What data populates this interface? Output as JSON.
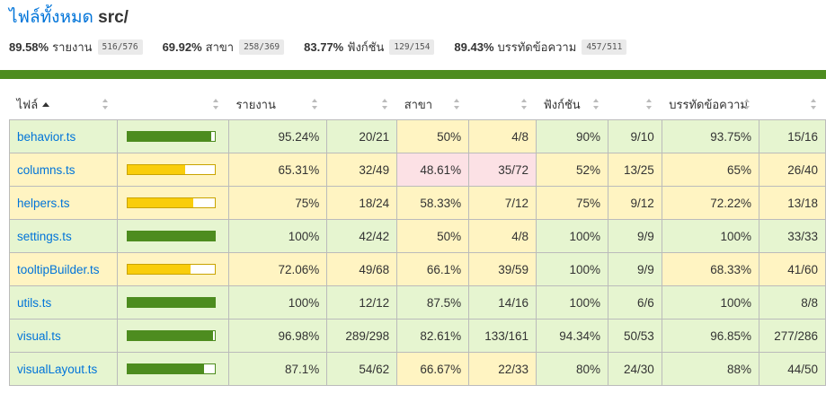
{
  "header": {
    "title_all_files": "ไฟล์ทั้งหมด",
    "title_dir": "src/"
  },
  "summary": [
    {
      "pct": "89.58%",
      "label": "รายงาน",
      "frac": "516/576"
    },
    {
      "pct": "69.92%",
      "label": "สาขา",
      "frac": "258/369"
    },
    {
      "pct": "83.77%",
      "label": "ฟังก์ชัน",
      "frac": "129/154"
    },
    {
      "pct": "89.43%",
      "label": "บรรทัดข้อความ",
      "frac": "457/511"
    }
  ],
  "columns": {
    "file": "ไฟล์",
    "statements": "รายงาน",
    "branches": "สาขา",
    "functions": "ฟังก์ชัน",
    "lines": "บรรทัดข้อความ"
  },
  "colors": {
    "high": "#e6f5d0",
    "medium": "#fff4c2",
    "low": "#fce1e5",
    "bar_high": "#4d8c1f",
    "bar_medium": "#f9cd0b",
    "link": "#0074d9"
  },
  "rows": [
    {
      "file": "behavior.ts",
      "coverage": 0.9524,
      "bar_level": "high",
      "statements": {
        "pct": "95.24%",
        "frac": "20/21",
        "level": "high"
      },
      "branches": {
        "pct": "50%",
        "frac": "4/8",
        "level": "medium"
      },
      "functions": {
        "pct": "90%",
        "frac": "9/10",
        "level": "high"
      },
      "lines": {
        "pct": "93.75%",
        "frac": "15/16",
        "level": "high"
      }
    },
    {
      "file": "columns.ts",
      "coverage": 0.6531,
      "bar_level": "medium",
      "statements": {
        "pct": "65.31%",
        "frac": "32/49",
        "level": "medium"
      },
      "branches": {
        "pct": "48.61%",
        "frac": "35/72",
        "level": "low"
      },
      "functions": {
        "pct": "52%",
        "frac": "13/25",
        "level": "medium"
      },
      "lines": {
        "pct": "65%",
        "frac": "26/40",
        "level": "medium"
      }
    },
    {
      "file": "helpers.ts",
      "coverage": 0.75,
      "bar_level": "medium",
      "statements": {
        "pct": "75%",
        "frac": "18/24",
        "level": "medium"
      },
      "branches": {
        "pct": "58.33%",
        "frac": "7/12",
        "level": "medium"
      },
      "functions": {
        "pct": "75%",
        "frac": "9/12",
        "level": "medium"
      },
      "lines": {
        "pct": "72.22%",
        "frac": "13/18",
        "level": "medium"
      }
    },
    {
      "file": "settings.ts",
      "coverage": 1.0,
      "bar_level": "high",
      "statements": {
        "pct": "100%",
        "frac": "42/42",
        "level": "high"
      },
      "branches": {
        "pct": "50%",
        "frac": "4/8",
        "level": "medium"
      },
      "functions": {
        "pct": "100%",
        "frac": "9/9",
        "level": "high"
      },
      "lines": {
        "pct": "100%",
        "frac": "33/33",
        "level": "high"
      }
    },
    {
      "file": "tooltipBuilder.ts",
      "coverage": 0.7206,
      "bar_level": "medium",
      "statements": {
        "pct": "72.06%",
        "frac": "49/68",
        "level": "medium"
      },
      "branches": {
        "pct": "66.1%",
        "frac": "39/59",
        "level": "medium"
      },
      "functions": {
        "pct": "100%",
        "frac": "9/9",
        "level": "high"
      },
      "lines": {
        "pct": "68.33%",
        "frac": "41/60",
        "level": "medium"
      }
    },
    {
      "file": "utils.ts",
      "coverage": 1.0,
      "bar_level": "high",
      "statements": {
        "pct": "100%",
        "frac": "12/12",
        "level": "high"
      },
      "branches": {
        "pct": "87.5%",
        "frac": "14/16",
        "level": "high"
      },
      "functions": {
        "pct": "100%",
        "frac": "6/6",
        "level": "high"
      },
      "lines": {
        "pct": "100%",
        "frac": "8/8",
        "level": "high"
      }
    },
    {
      "file": "visual.ts",
      "coverage": 0.9698,
      "bar_level": "high",
      "statements": {
        "pct": "96.98%",
        "frac": "289/298",
        "level": "high"
      },
      "branches": {
        "pct": "82.61%",
        "frac": "133/161",
        "level": "high"
      },
      "functions": {
        "pct": "94.34%",
        "frac": "50/53",
        "level": "high"
      },
      "lines": {
        "pct": "96.85%",
        "frac": "277/286",
        "level": "high"
      }
    },
    {
      "file": "visualLayout.ts",
      "coverage": 0.871,
      "bar_level": "high",
      "statements": {
        "pct": "87.1%",
        "frac": "54/62",
        "level": "high"
      },
      "branches": {
        "pct": "66.67%",
        "frac": "22/33",
        "level": "medium"
      },
      "functions": {
        "pct": "80%",
        "frac": "24/30",
        "level": "high"
      },
      "lines": {
        "pct": "88%",
        "frac": "44/50",
        "level": "high"
      }
    }
  ]
}
